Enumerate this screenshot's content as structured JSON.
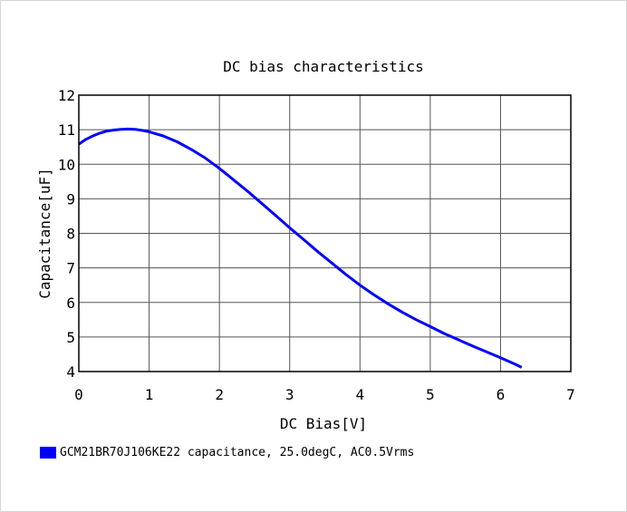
{
  "chart_data": {
    "type": "line",
    "title": "DC bias characteristics",
    "xlabel": "DC Bias[V]",
    "ylabel": "Capacitance[uF]",
    "xlim": [
      0,
      7
    ],
    "ylim": [
      4,
      12
    ],
    "x_ticks": [
      "0",
      "1",
      "2",
      "3",
      "4",
      "5",
      "6",
      "7"
    ],
    "y_ticks": [
      "4",
      "5",
      "6",
      "7",
      "8",
      "9",
      "10",
      "11",
      "12"
    ],
    "grid": true,
    "legend_position": "bottom-left",
    "series": [
      {
        "name": "GCM21BR70J106KE22 capacitance, 25.0degC, AC0.5Vrms",
        "color": "#0000ff",
        "x": [
          0,
          0.1,
          0.2,
          0.3,
          0.4,
          0.5,
          0.6,
          0.7,
          0.8,
          0.9,
          1.0,
          1.2,
          1.4,
          1.6,
          1.8,
          2.0,
          2.2,
          2.4,
          2.6,
          2.8,
          3.0,
          3.2,
          3.4,
          3.6,
          3.8,
          4.0,
          4.2,
          4.4,
          4.6,
          4.8,
          5.0,
          5.2,
          5.4,
          5.6,
          5.8,
          6.0,
          6.2,
          6.3
        ],
        "y": [
          10.58,
          10.72,
          10.82,
          10.9,
          10.96,
          10.99,
          11.01,
          11.02,
          11.01,
          10.98,
          10.94,
          10.82,
          10.65,
          10.43,
          10.18,
          9.88,
          9.55,
          9.22,
          8.87,
          8.52,
          8.16,
          7.82,
          7.47,
          7.14,
          6.81,
          6.5,
          6.22,
          5.96,
          5.72,
          5.5,
          5.3,
          5.1,
          4.92,
          4.74,
          4.57,
          4.4,
          4.22,
          4.12
        ]
      }
    ]
  }
}
